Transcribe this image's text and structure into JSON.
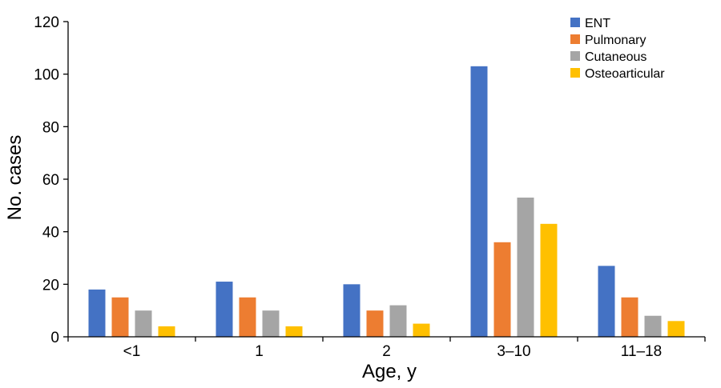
{
  "chart_data": {
    "type": "bar",
    "title": "",
    "xlabel": "Age, y",
    "ylabel": "No. cases",
    "categories": [
      "<1",
      "1",
      "2",
      "3–10",
      "11–18"
    ],
    "series": [
      {
        "name": "ENT",
        "color": "#4472C4",
        "values": [
          18,
          21,
          20,
          103,
          27
        ]
      },
      {
        "name": "Pulmonary",
        "color": "#ED7D31",
        "values": [
          15,
          15,
          10,
          36,
          15
        ]
      },
      {
        "name": "Cutaneous",
        "color": "#A5A5A5",
        "values": [
          10,
          10,
          12,
          53,
          8
        ]
      },
      {
        "name": "Osteoarticular",
        "color": "#FFC000",
        "values": [
          4,
          4,
          5,
          43,
          6
        ]
      }
    ],
    "ylim": [
      0,
      120
    ],
    "yticks": [
      "0",
      "20",
      "40",
      "60",
      "80",
      "100",
      "120"
    ],
    "grid": false,
    "legend": "top-right"
  }
}
